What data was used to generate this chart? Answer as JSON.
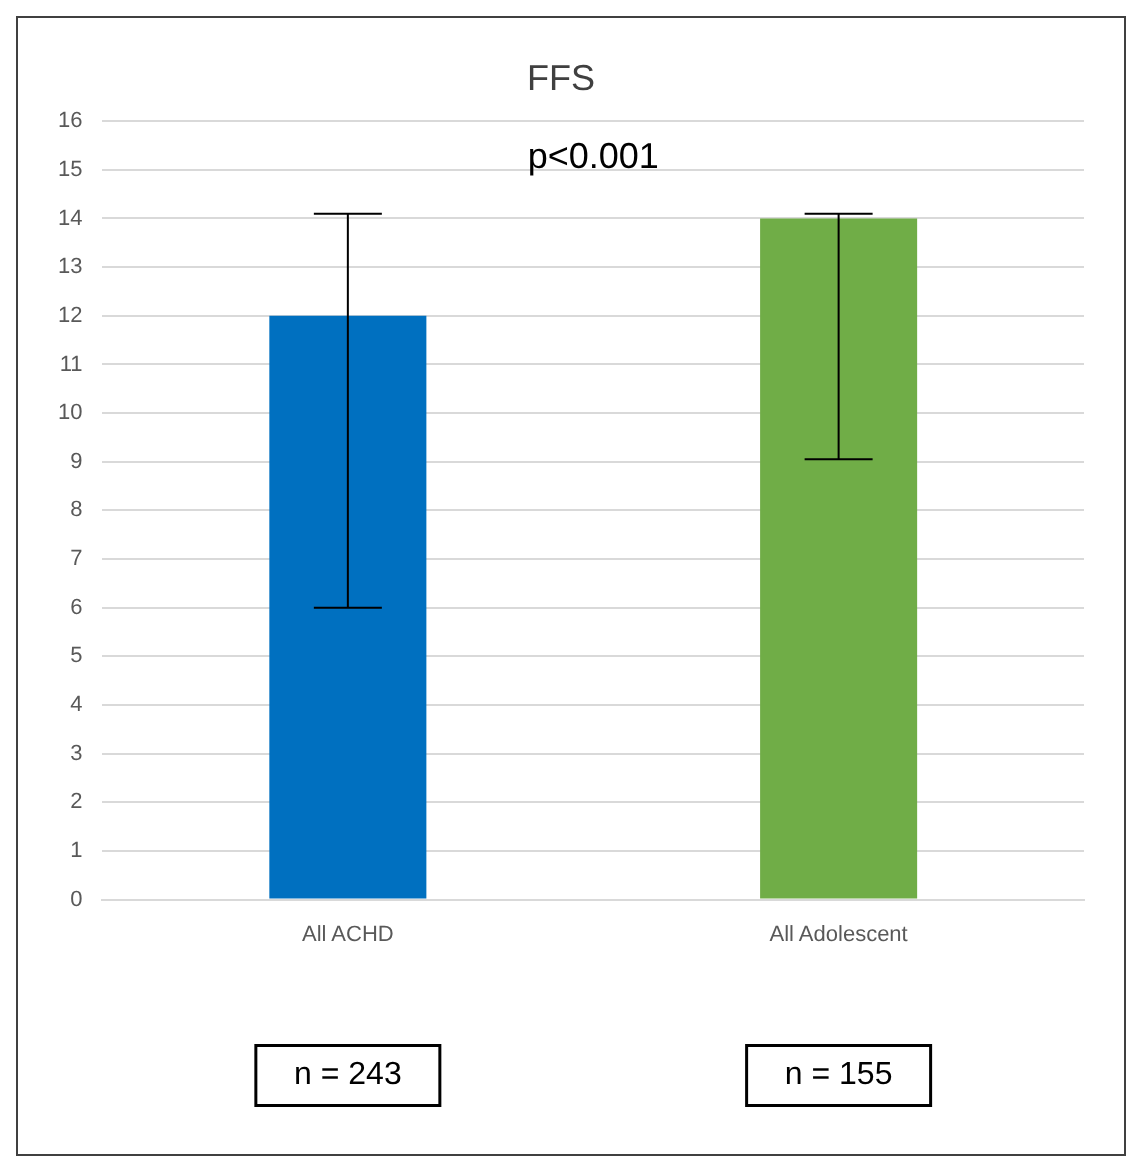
{
  "chart_data": {
    "type": "bar",
    "title": "FFS",
    "categories": [
      "All ACHD",
      "All Adolescent"
    ],
    "values": [
      12,
      14
    ],
    "colors": [
      "#0070c0",
      "#70ad47"
    ],
    "errors": [
      [
        6,
        14.1
      ],
      [
        9.05,
        14.1
      ]
    ],
    "ylim": [
      0,
      16
    ],
    "yticks": [
      0,
      1,
      2,
      3,
      4,
      5,
      6,
      7,
      8,
      9,
      10,
      11,
      12,
      13,
      14,
      15,
      16
    ],
    "grid": "y",
    "annotations": [
      "p<0.001",
      "n = 243",
      "n = 155"
    ]
  }
}
